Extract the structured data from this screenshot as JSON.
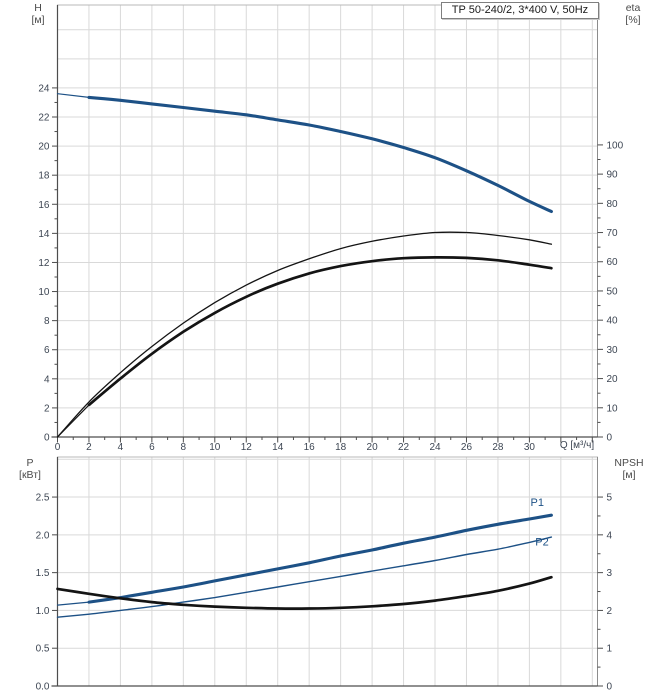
{
  "title_box": {
    "label": "TP 50-240/2, 3*400 V, 50Hz"
  },
  "colors": {
    "curve_blue": "#1d5186",
    "curve_black": "#141414",
    "grid": "#d9d9d9",
    "frame": "#b8b8b8",
    "axis_dark": "#4d4d4d",
    "axis_medium": "#8c8c8c",
    "tick_text": "#3d4653"
  },
  "top_chart": {
    "left_axis_title": {
      "line1": "H",
      "line2": "[м]"
    },
    "right_axis_title": {
      "line1": "eta",
      "line2": "[%]"
    },
    "x_axis_label": "Q [м³/ч]"
  },
  "bottom_chart": {
    "left_axis_title": {
      "line1": "P",
      "line2": "[кВт]"
    },
    "right_axis_title": {
      "line1": "NPSH",
      "line2": "[м]"
    }
  },
  "chart_data": [
    {
      "type": "line",
      "name": "head-and-efficiency-vs-flow",
      "title": "TP 50-240/2, 3*400 V, 50Hz",
      "xlabel": "Q [м³/ч]",
      "x_axis": {
        "range": [
          0,
          34.33
        ],
        "ticks": [
          "0",
          "2",
          "4",
          "6",
          "8",
          "10",
          "12",
          "14",
          "16",
          "18",
          "20",
          "22",
          "24",
          "26",
          "28",
          "30"
        ],
        "grid_step": 2,
        "minor_step": 1,
        "extend_ticks": true,
        "show_labels": true
      },
      "left_axis": {
        "label": "H [м]",
        "range": [
          0,
          29.7
        ],
        "ticks": [
          "0",
          "2",
          "4",
          "6",
          "8",
          "10",
          "12",
          "14",
          "16",
          "18",
          "20",
          "22",
          "24"
        ],
        "grid_step": 2,
        "minor_step": 1
      },
      "right_axis": {
        "label": "eta [%]",
        "range": [
          0,
          147.9
        ],
        "ticks": [
          "0",
          "10",
          "20",
          "30",
          "40",
          "50",
          "60",
          "70",
          "80",
          "90",
          "100"
        ],
        "minor_step": 5
      },
      "series": [
        {
          "name": "H-curve",
          "axis": "left",
          "style": "thick-blue",
          "thin_until": 2,
          "points": [
            [
              0,
              23.6
            ],
            [
              2,
              23.35
            ],
            [
              4,
              23.15
            ],
            [
              6,
              22.9
            ],
            [
              8,
              22.65
            ],
            [
              10,
              22.4
            ],
            [
              12,
              22.15
            ],
            [
              14,
              21.8
            ],
            [
              16,
              21.45
            ],
            [
              18,
              21.0
            ],
            [
              20,
              20.5
            ],
            [
              22,
              19.9
            ],
            [
              24,
              19.2
            ],
            [
              26,
              18.3
            ],
            [
              28,
              17.3
            ],
            [
              30,
              16.2
            ],
            [
              31.4,
              15.5
            ]
          ]
        },
        {
          "name": "eta-pump",
          "axis": "right",
          "style": "thin-black",
          "points": [
            [
              0,
              0
            ],
            [
              2,
              12
            ],
            [
              4,
              22
            ],
            [
              6,
              31
            ],
            [
              8,
              39
            ],
            [
              10,
              46
            ],
            [
              12,
              52
            ],
            [
              14,
              57
            ],
            [
              16,
              61
            ],
            [
              18,
              64.5
            ],
            [
              20,
              67
            ],
            [
              22,
              68.8
            ],
            [
              24,
              70
            ],
            [
              26,
              70
            ],
            [
              28,
              69
            ],
            [
              30,
              67.5
            ],
            [
              31.4,
              66
            ]
          ]
        },
        {
          "name": "eta-pump-motor",
          "axis": "right",
          "style": "thick-black",
          "thin_until": 2,
          "points": [
            [
              0,
              0
            ],
            [
              2,
              11
            ],
            [
              4,
              20
            ],
            [
              6,
              28.5
            ],
            [
              8,
              36
            ],
            [
              10,
              42.5
            ],
            [
              12,
              48
            ],
            [
              14,
              52.5
            ],
            [
              16,
              56
            ],
            [
              18,
              58.5
            ],
            [
              20,
              60.2
            ],
            [
              22,
              61.2
            ],
            [
              24,
              61.5
            ],
            [
              26,
              61.3
            ],
            [
              28,
              60.5
            ],
            [
              30,
              59
            ],
            [
              31.4,
              57.8
            ]
          ]
        }
      ],
      "annotations": []
    },
    {
      "type": "line",
      "name": "power-and-npsh-vs-flow",
      "xlabel": "",
      "x_axis": {
        "range": [
          0,
          34.33
        ],
        "ticks": [],
        "grid_step": 2,
        "show_labels": false
      },
      "left_axis": {
        "label": "P [кВт]",
        "range": [
          0,
          3.03
        ],
        "ticks": [
          "0.0",
          "0.5",
          "1.0",
          "1.5",
          "2.0",
          "2.5"
        ],
        "grid_step": 0.5
      },
      "right_axis": {
        "label": "NPSH [м]",
        "range": [
          0,
          6.06
        ],
        "ticks": [
          "0",
          "1",
          "2",
          "3",
          "4",
          "5"
        ],
        "minor_step": 0.5
      },
      "series": [
        {
          "name": "P1",
          "axis": "left",
          "style": "thick-blue",
          "thin_until": 2,
          "points": [
            [
              0,
              1.07
            ],
            [
              2,
              1.11
            ],
            [
              4,
              1.17
            ],
            [
              6,
              1.24
            ],
            [
              8,
              1.31
            ],
            [
              10,
              1.39
            ],
            [
              12,
              1.47
            ],
            [
              14,
              1.55
            ],
            [
              16,
              1.63
            ],
            [
              18,
              1.72
            ],
            [
              20,
              1.8
            ],
            [
              22,
              1.89
            ],
            [
              24,
              1.97
            ],
            [
              26,
              2.06
            ],
            [
              28,
              2.14
            ],
            [
              30,
              2.21
            ],
            [
              31.4,
              2.26
            ]
          ]
        },
        {
          "name": "P2",
          "axis": "left",
          "style": "thin-blue",
          "points": [
            [
              0,
              0.91
            ],
            [
              2,
              0.95
            ],
            [
              4,
              1.0
            ],
            [
              6,
              1.05
            ],
            [
              8,
              1.11
            ],
            [
              10,
              1.17
            ],
            [
              12,
              1.24
            ],
            [
              14,
              1.31
            ],
            [
              16,
              1.38
            ],
            [
              18,
              1.45
            ],
            [
              20,
              1.52
            ],
            [
              22,
              1.59
            ],
            [
              24,
              1.66
            ],
            [
              26,
              1.74
            ],
            [
              28,
              1.81
            ],
            [
              30,
              1.9
            ],
            [
              31.4,
              1.97
            ]
          ]
        },
        {
          "name": "NPSH",
          "axis": "right",
          "style": "thick-black",
          "points": [
            [
              0,
              2.57
            ],
            [
              2,
              2.44
            ],
            [
              4,
              2.32
            ],
            [
              6,
              2.22
            ],
            [
              8,
              2.15
            ],
            [
              10,
              2.1
            ],
            [
              12,
              2.07
            ],
            [
              14,
              2.05
            ],
            [
              16,
              2.05
            ],
            [
              18,
              2.07
            ],
            [
              20,
              2.11
            ],
            [
              22,
              2.17
            ],
            [
              24,
              2.26
            ],
            [
              26,
              2.38
            ],
            [
              28,
              2.52
            ],
            [
              30,
              2.71
            ],
            [
              31.4,
              2.88
            ]
          ]
        }
      ],
      "annotations": [
        {
          "text": "P1",
          "x": 30.5,
          "y": 2.38,
          "axis": "left"
        },
        {
          "text": "P2",
          "x": 30.8,
          "y": 1.86,
          "axis": "left"
        }
      ]
    }
  ]
}
